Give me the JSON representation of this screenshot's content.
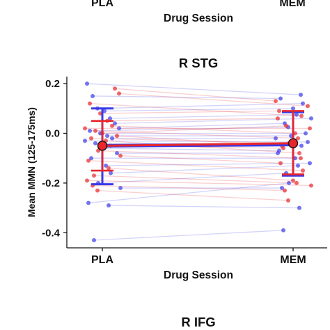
{
  "chart_data": [
    {
      "type": "scatter",
      "title": "",
      "xlabel": "Drug Session",
      "ylabel": "",
      "categories": [
        "PLA",
        "MEM"
      ],
      "partial": "only bottom of previous panel visible"
    },
    {
      "type": "scatter",
      "title": "R STG",
      "xlabel": "Drug Session",
      "ylabel": "Mean MMN (125-175ms)",
      "categories": [
        "PLA",
        "MEM"
      ],
      "ylim": [
        -0.45,
        0.23
      ],
      "yticks": [
        "0.2",
        "0.0",
        "-0.2",
        "-0.4"
      ],
      "ytick_values": [
        0.2,
        0.0,
        -0.2,
        -0.4
      ],
      "grid": false,
      "series": [
        {
          "color": "#3a3ae8",
          "mean": [
            -0.05,
            -0.045
          ],
          "error_low": [
            -0.205,
            -0.17
          ],
          "error_high": [
            0.1,
            0.085
          ],
          "pairs": [
            [
              0.2,
              0.155
            ],
            [
              0.15,
              0.14
            ],
            [
              0.1,
              0.12
            ],
            [
              0.09,
              0.1
            ],
            [
              0.06,
              0.075
            ],
            [
              0.04,
              0.06
            ],
            [
              0.02,
              0.04
            ],
            [
              0.01,
              0.025
            ],
            [
              0.0,
              0.0
            ],
            [
              -0.01,
              -0.01
            ],
            [
              -0.02,
              -0.02
            ],
            [
              -0.03,
              -0.035
            ],
            [
              -0.04,
              -0.05
            ],
            [
              -0.06,
              -0.07
            ],
            [
              -0.08,
              -0.08
            ],
            [
              -0.1,
              -0.1
            ],
            [
              -0.13,
              -0.12
            ],
            [
              -0.16,
              -0.13
            ],
            [
              -0.2,
              -0.16
            ],
            [
              -0.22,
              -0.22
            ],
            [
              -0.28,
              -0.2
            ],
            [
              -0.29,
              -0.3
            ],
            [
              -0.43,
              -0.39
            ]
          ]
        },
        {
          "color": "#e8262b",
          "mean": [
            -0.05,
            -0.04
          ],
          "error_low": [
            -0.15,
            -0.165
          ],
          "error_high": [
            0.05,
            0.09
          ],
          "pairs": [
            [
              0.18,
              0.13
            ],
            [
              0.16,
              0.11
            ],
            [
              0.12,
              0.07
            ],
            [
              0.08,
              0.09
            ],
            [
              0.05,
              0.06
            ],
            [
              0.03,
              0.0
            ],
            [
              0.02,
              0.02
            ],
            [
              0.01,
              -0.02
            ],
            [
              0.0,
              0.03
            ],
            [
              -0.01,
              -0.05
            ],
            [
              -0.02,
              -0.04
            ],
            [
              -0.03,
              -0.08
            ],
            [
              -0.05,
              -0.06
            ],
            [
              -0.07,
              -0.1
            ],
            [
              -0.09,
              -0.12
            ],
            [
              -0.11,
              -0.15
            ],
            [
              -0.14,
              -0.19
            ],
            [
              -0.17,
              -0.2
            ],
            [
              -0.19,
              -0.21
            ],
            [
              -0.21,
              -0.23
            ],
            [
              -0.23,
              -0.27
            ]
          ]
        }
      ]
    },
    {
      "type": "scatter",
      "title": "R IFG",
      "partial": "only title of next panel visible"
    }
  ],
  "top_panel": {
    "categories": [
      "PLA",
      "MEM"
    ],
    "xlabel": "Drug Session"
  },
  "bottom_panel": {
    "title": "R IFG"
  }
}
